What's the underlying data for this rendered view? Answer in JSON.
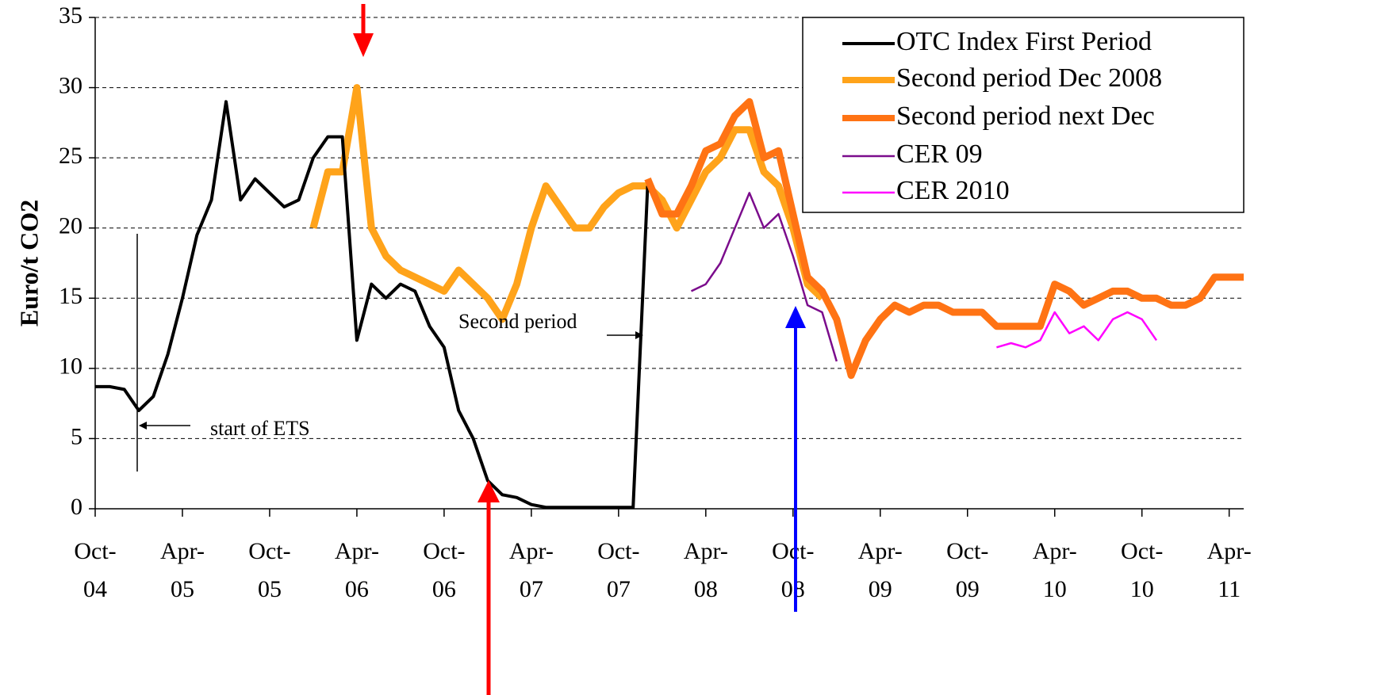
{
  "chart_data": {
    "type": "line",
    "y_label": "Euro/t CO2",
    "annotations": [
      "start of ETS",
      "Second period"
    ],
    "x": [
      "2004-10",
      "2004-11",
      "2004-12",
      "2005-01",
      "2005-02",
      "2005-03",
      "2005-04",
      "2005-05",
      "2005-06",
      "2005-07",
      "2005-08",
      "2005-09",
      "2005-10",
      "2005-11",
      "2005-12",
      "2006-01",
      "2006-02",
      "2006-03",
      "2006-04",
      "2006-05",
      "2006-06",
      "2006-07",
      "2006-08",
      "2006-09",
      "2006-10",
      "2006-11",
      "2006-12",
      "2007-01",
      "2007-02",
      "2007-03",
      "2007-04",
      "2007-05",
      "2007-06",
      "2007-07",
      "2007-08",
      "2007-09",
      "2007-10",
      "2007-11",
      "2007-12",
      "2008-01",
      "2008-02",
      "2008-03",
      "2008-04",
      "2008-05",
      "2008-06",
      "2008-07",
      "2008-08",
      "2008-09",
      "2008-10",
      "2008-11",
      "2008-12",
      "2009-01",
      "2009-02",
      "2009-03",
      "2009-04",
      "2009-05",
      "2009-06",
      "2009-07",
      "2009-08",
      "2009-09",
      "2009-10",
      "2009-11",
      "2009-12",
      "2010-01",
      "2010-02",
      "2010-03",
      "2010-04",
      "2010-05",
      "2010-06",
      "2010-07",
      "2010-08",
      "2010-09",
      "2010-10",
      "2010-11",
      "2010-12",
      "2011-01",
      "2011-02",
      "2011-03",
      "2011-04",
      "2011-05"
    ],
    "xlim": [
      "2004-10",
      "2011-05"
    ],
    "xticks": [
      {
        "value": "2004-10",
        "label": [
          "Oct-",
          "04"
        ]
      },
      {
        "value": "2005-04",
        "label": [
          "Apr-",
          "05"
        ]
      },
      {
        "value": "2005-10",
        "label": [
          "Oct-",
          "05"
        ]
      },
      {
        "value": "2006-04",
        "label": [
          "Apr-",
          "06"
        ]
      },
      {
        "value": "2006-10",
        "label": [
          "Oct-",
          "06"
        ]
      },
      {
        "value": "2007-04",
        "label": [
          "Apr-",
          "07"
        ]
      },
      {
        "value": "2007-10",
        "label": [
          "Oct-",
          "07"
        ]
      },
      {
        "value": "2008-04",
        "label": [
          "Apr-",
          "08"
        ]
      },
      {
        "value": "2008-10",
        "label": [
          "Oct-",
          "08"
        ]
      },
      {
        "value": "2009-04",
        "label": [
          "Apr-",
          "09"
        ]
      },
      {
        "value": "2009-10",
        "label": [
          "Oct-",
          "09"
        ]
      },
      {
        "value": "2010-04",
        "label": [
          "Apr-",
          "10"
        ]
      },
      {
        "value": "2010-10",
        "label": [
          "Oct-",
          "10"
        ]
      },
      {
        "value": "2011-04",
        "label": [
          "Apr-",
          "11"
        ]
      }
    ],
    "ylim": [
      0,
      35
    ],
    "yticks": [
      0,
      5,
      10,
      15,
      20,
      25,
      30,
      35
    ],
    "grid": true,
    "legend": "upper right",
    "series": [
      {
        "name": "OTC Index First Period",
        "color": "#000000",
        "linewidth": 4,
        "values": [
          8.7,
          8.7,
          8.5,
          7,
          8,
          11,
          15,
          19.5,
          22,
          29,
          22,
          23.5,
          22.5,
          21.5,
          22,
          25,
          26.5,
          26.5,
          12,
          16,
          15,
          16,
          15.5,
          13,
          11.5,
          7,
          5,
          2,
          1,
          0.8,
          0.3,
          0.1,
          0.1,
          0.1,
          0.1,
          0.1,
          0.1,
          0.1,
          23,
          null,
          null,
          null,
          null,
          null,
          null,
          null,
          null,
          null,
          null,
          null,
          null,
          null,
          null,
          null,
          null,
          null,
          null,
          null,
          null,
          null,
          null,
          null,
          null,
          null,
          null,
          null,
          null,
          null,
          null,
          null,
          null,
          null,
          null,
          null,
          null,
          null,
          null,
          null,
          null,
          null
        ]
      },
      {
        "name": "Second period Dec 2008",
        "color": "#ffa31a",
        "linewidth": 9,
        "values": [
          null,
          null,
          null,
          null,
          null,
          null,
          null,
          null,
          null,
          null,
          null,
          null,
          null,
          null,
          null,
          20,
          24,
          24,
          30,
          20,
          18,
          17,
          16.5,
          16,
          15.5,
          17,
          16,
          15,
          13.5,
          16,
          20,
          23,
          21.5,
          20,
          20,
          21.5,
          22.5,
          23,
          23,
          22,
          20,
          22,
          24,
          25,
          27,
          27,
          24,
          23,
          20,
          16,
          15,
          null,
          null,
          null,
          null,
          null,
          null,
          null,
          null,
          null,
          null,
          null,
          null,
          null,
          null,
          null,
          null,
          null,
          null,
          null,
          null,
          null,
          null,
          null,
          null,
          null,
          null,
          null,
          null,
          null
        ]
      },
      {
        "name": "Second period next Dec",
        "color": "#ff7314",
        "linewidth": 9,
        "values": [
          null,
          null,
          null,
          null,
          null,
          null,
          null,
          null,
          null,
          null,
          null,
          null,
          null,
          null,
          null,
          null,
          null,
          null,
          null,
          null,
          null,
          null,
          null,
          null,
          null,
          null,
          null,
          null,
          null,
          null,
          null,
          null,
          null,
          null,
          null,
          null,
          null,
          null,
          23.5,
          21,
          21,
          23,
          25.5,
          26,
          28,
          29,
          25,
          25.5,
          21,
          16.5,
          15.5,
          13.5,
          9.5,
          12,
          13.5,
          14.5,
          14,
          14.5,
          14.5,
          14,
          14,
          14,
          13,
          13,
          13,
          13,
          16,
          15.5,
          14.5,
          15,
          15.5,
          15.5,
          15,
          15,
          14.5,
          14.5,
          15,
          16.5,
          16.5,
          16.5
        ]
      },
      {
        "name": "CER 09",
        "color": "#7b0c8c",
        "linewidth": 2.5,
        "values": [
          null,
          null,
          null,
          null,
          null,
          null,
          null,
          null,
          null,
          null,
          null,
          null,
          null,
          null,
          null,
          null,
          null,
          null,
          null,
          null,
          null,
          null,
          null,
          null,
          null,
          null,
          null,
          null,
          null,
          null,
          null,
          null,
          null,
          null,
          null,
          null,
          null,
          null,
          null,
          null,
          null,
          15.5,
          16,
          17.5,
          20,
          22.5,
          20,
          21,
          18,
          14.5,
          14,
          10.5,
          null,
          null,
          null,
          null,
          null,
          null,
          null,
          null,
          null,
          null,
          null,
          null,
          null,
          null,
          null,
          null,
          null,
          null,
          null,
          null,
          null,
          null,
          null,
          null,
          null,
          null,
          null,
          null
        ]
      },
      {
        "name": "CER 2010",
        "color": "#ff00ff",
        "linewidth": 2.5,
        "values": [
          null,
          null,
          null,
          null,
          null,
          null,
          null,
          null,
          null,
          null,
          null,
          null,
          null,
          null,
          null,
          null,
          null,
          null,
          null,
          null,
          null,
          null,
          null,
          null,
          null,
          null,
          null,
          null,
          null,
          null,
          null,
          null,
          null,
          null,
          null,
          null,
          null,
          null,
          null,
          null,
          null,
          null,
          null,
          null,
          null,
          null,
          null,
          null,
          null,
          null,
          null,
          null,
          null,
          null,
          null,
          null,
          null,
          null,
          null,
          null,
          null,
          null,
          11.5,
          11.8,
          11.5,
          12,
          14,
          12.5,
          13,
          12,
          13.5,
          14,
          13.5,
          12,
          null,
          null,
          null,
          null,
          null,
          null
        ]
      }
    ]
  }
}
